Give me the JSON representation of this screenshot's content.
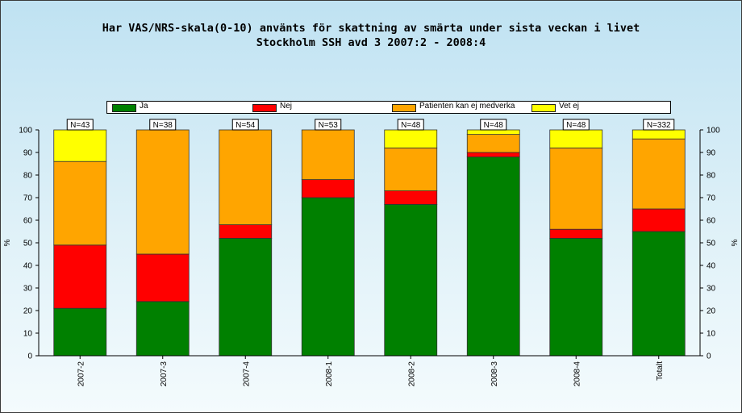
{
  "title_line1": "Har VAS/NRS-skala(0-10) använts för skattning av smärta under sista veckan i livet",
  "title_line2": "Stockholm SSH avd 3 2007:2 - 2008:4",
  "chart_data": {
    "type": "bar",
    "stacked": true,
    "title": "Har VAS/NRS-skala(0-10) använts för skattning av smärta under sista veckan i livet",
    "subtitle": "Stockholm SSH avd 3 2007:2 - 2008:4",
    "categories": [
      "2007-2",
      "2007-3",
      "2007-4",
      "2008-1",
      "2008-2",
      "2008-3",
      "2008-4",
      "Totalt"
    ],
    "n_labels": [
      "N=43",
      "N=38",
      "N=54",
      "N=53",
      "N=48",
      "N=48",
      "N=48",
      "N=332"
    ],
    "series": [
      {
        "name": "Ja",
        "color": "#008000",
        "values": [
          21,
          24,
          52,
          70,
          67,
          88,
          52,
          55
        ]
      },
      {
        "name": "Nej",
        "color": "#ff0000",
        "values": [
          28,
          21,
          6,
          8,
          6,
          2,
          4,
          10
        ]
      },
      {
        "name": "Patienten kan ej medverka",
        "color": "#ffa500",
        "values": [
          37,
          55,
          42,
          22,
          19,
          8,
          36,
          31
        ]
      },
      {
        "name": "Vet ej",
        "color": "#ffff00",
        "values": [
          14,
          0,
          0,
          0,
          8,
          2,
          8,
          4
        ]
      }
    ],
    "ylabel": "%",
    "y2label": "%",
    "ylim": [
      0,
      100
    ],
    "yticks": [
      0,
      10,
      20,
      30,
      40,
      50,
      60,
      70,
      80,
      90,
      100
    ],
    "legend_position": "top",
    "grid": false
  }
}
